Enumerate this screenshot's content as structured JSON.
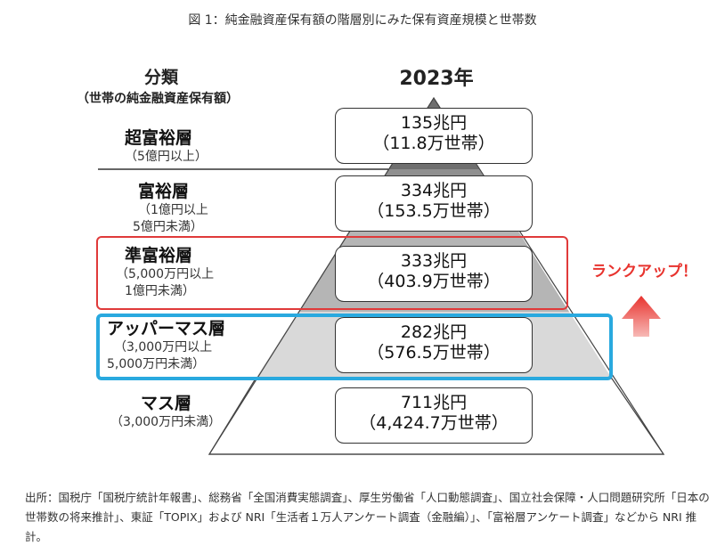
{
  "title": "図 1：純金融資産保有額の階層別にみた保有資産規模と世帯数",
  "header": {
    "category": "分類",
    "category_sub": "（世帯の純金融資産保有額）",
    "year": "2023年"
  },
  "levels": [
    {
      "name": "超富裕層",
      "range": [
        "（5億円以上）"
      ],
      "amount": "135兆円",
      "households": "（11.8万世帯）"
    },
    {
      "name": "富裕層",
      "range": [
        "（1億円以上",
        "5億円未満）"
      ],
      "amount": "334兆円",
      "households": "（153.5万世帯）"
    },
    {
      "name": "準富裕層",
      "range": [
        "（5,000万円以上",
        "1億円未満）"
      ],
      "amount": "333兆円",
      "households": "（403.9万世帯）"
    },
    {
      "name": "アッパーマス層",
      "range": [
        "（3,000万円以上",
        "5,000万円未満）"
      ],
      "amount": "282兆円",
      "households": "（576.5万世帯）"
    },
    {
      "name": "マス層",
      "range": [
        "（3,000万円未満）"
      ],
      "amount": "711兆円",
      "households": "（4,424.7万世帯）"
    }
  ],
  "annotation": "ランクアップ！",
  "colors": {
    "red_highlight": "#e03a3a",
    "blue_highlight": "#29a9df",
    "arrow": "#e8332e"
  },
  "source": "出所：国税庁「国税庁統計年報書」、総務省「全国消費実態調査」、厚生労働省「人口動態調査」、国立社会保障・人口問題研究所「日本の世帯数の将来推計」、東証「TOPIX」および NRI「生活者１万人アンケート調査（金融編）」、「富裕層アンケート調査」などから NRI 推計。"
}
